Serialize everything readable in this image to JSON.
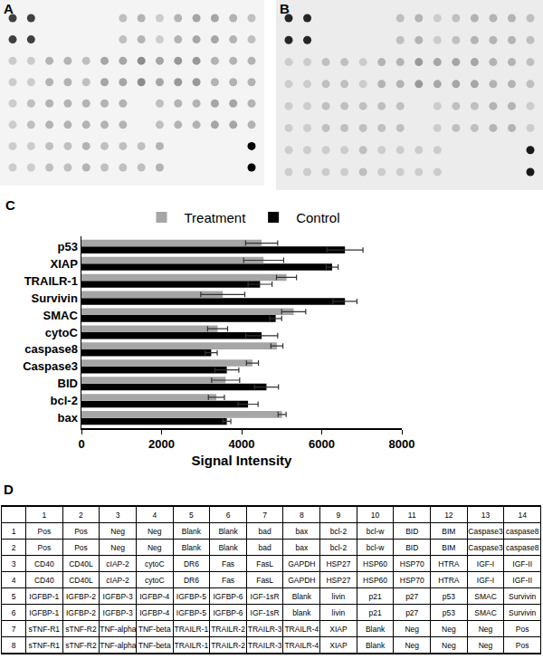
{
  "blots": [
    {
      "label": "A",
      "spots": [
        [
          0.75,
          0.75,
          0,
          0,
          0,
          0,
          0.25,
          0.3,
          0.2,
          0.3,
          0.35,
          0.35,
          0.3,
          0.25
        ],
        [
          0.75,
          0.75,
          0,
          0,
          0,
          0,
          0.25,
          0.3,
          0.2,
          0.3,
          0.35,
          0.35,
          0.3,
          0.25
        ],
        [
          0.2,
          0.2,
          0.3,
          0.3,
          0.25,
          0.35,
          0.35,
          0.45,
          0.35,
          0.4,
          0.4,
          0.3,
          0.3,
          0.3
        ],
        [
          0.2,
          0.2,
          0.3,
          0.3,
          0.25,
          0.35,
          0.35,
          0.45,
          0.35,
          0.4,
          0.4,
          0.3,
          0.3,
          0.3
        ],
        [
          0.2,
          0.25,
          0.3,
          0.3,
          0.3,
          0.3,
          0.3,
          0,
          0.25,
          0.3,
          0.3,
          0.35,
          0.35,
          0.3
        ],
        [
          0.2,
          0.25,
          0.3,
          0.3,
          0.3,
          0.3,
          0.3,
          0,
          0.25,
          0.3,
          0.3,
          0.35,
          0.35,
          0.3
        ],
        [
          0.2,
          0.2,
          0.25,
          0.25,
          0.3,
          0.25,
          0.25,
          0.25,
          0.3,
          0,
          0,
          0,
          0,
          1
        ],
        [
          0.2,
          0.2,
          0.25,
          0.25,
          0.3,
          0.25,
          0.25,
          0.25,
          0.3,
          0,
          0,
          0,
          0,
          1
        ]
      ]
    },
    {
      "label": "B",
      "spots": [
        [
          0.85,
          0.85,
          0,
          0,
          0,
          0,
          0.25,
          0.3,
          0.2,
          0.25,
          0.3,
          0.3,
          0.3,
          0.25
        ],
        [
          0.85,
          0.85,
          0,
          0,
          0,
          0,
          0.25,
          0.3,
          0.2,
          0.25,
          0.3,
          0.3,
          0.3,
          0.25
        ],
        [
          0.2,
          0.2,
          0.25,
          0.25,
          0.2,
          0.3,
          0.3,
          0.4,
          0.35,
          0.35,
          0.35,
          0.3,
          0.3,
          0.25
        ],
        [
          0.2,
          0.2,
          0.25,
          0.25,
          0.2,
          0.3,
          0.3,
          0.4,
          0.35,
          0.35,
          0.35,
          0.3,
          0.3,
          0.25
        ],
        [
          0.2,
          0.2,
          0.25,
          0.25,
          0.25,
          0.25,
          0.25,
          0,
          0.2,
          0.25,
          0.25,
          0.3,
          0.3,
          0.2
        ],
        [
          0.2,
          0.2,
          0.25,
          0.25,
          0.25,
          0.25,
          0.25,
          0,
          0.2,
          0.25,
          0.25,
          0.3,
          0.3,
          0.2
        ],
        [
          0.2,
          0.2,
          0.2,
          0.2,
          0.25,
          0.2,
          0.2,
          0.2,
          0.2,
          0,
          0,
          0,
          0,
          0.9
        ],
        [
          0.2,
          0.2,
          0.2,
          0.2,
          0.25,
          0.2,
          0.2,
          0.2,
          0.2,
          0,
          0,
          0,
          0,
          0.9
        ]
      ]
    }
  ],
  "chart_label": "C",
  "chart_data": {
    "type": "bar",
    "orientation": "horizontal",
    "categories": [
      "p53",
      "XIAP",
      "TRAILR-1",
      "Survivin",
      "SMAC",
      "cytoC",
      "caspase8",
      "Caspase3",
      "BID",
      "bcl-2",
      "bax"
    ],
    "series": [
      {
        "name": "Treatment",
        "color": "#a6a6a6",
        "values": [
          4500,
          4550,
          5120,
          3530,
          5300,
          3400,
          4880,
          4270,
          3600,
          3370,
          5010
        ],
        "errors": [
          400,
          500,
          250,
          550,
          300,
          250,
          150,
          150,
          350,
          200,
          100
        ]
      },
      {
        "name": "Control",
        "color": "#000000",
        "values": [
          6580,
          6260,
          4460,
          6580,
          4850,
          4500,
          3240,
          3630,
          4620,
          4160,
          3630
        ],
        "errors": [
          450,
          150,
          300,
          300,
          150,
          400,
          150,
          300,
          300,
          250,
          100
        ]
      }
    ],
    "x_label": "Signal Intensity",
    "xlim": [
      0,
      8000
    ],
    "xticks": [
      0,
      2000,
      4000,
      6000,
      8000
    ],
    "grid": false,
    "legend": "top"
  },
  "table": {
    "label": "D",
    "header": [
      "1",
      "2",
      "3",
      "4",
      "5",
      "6",
      "7",
      "8",
      "9",
      "10",
      "11",
      "12",
      "13",
      "14"
    ],
    "rows": [
      {
        "label": "1",
        "cells": [
          "Pos",
          "Pos",
          "Neg",
          "Neg",
          "Blank",
          "Blank",
          "bad",
          "bax",
          "bcl-2",
          "bcl-w",
          "BID",
          "BIM",
          "Caspase3",
          "caspase8"
        ]
      },
      {
        "label": "2",
        "cells": [
          "Pos",
          "Pos",
          "Neg",
          "Neg",
          "Blank",
          "Blank",
          "bad",
          "bax",
          "bcl-2",
          "bcl-w",
          "BID",
          "BIM",
          "Caspase3",
          "caspase8"
        ]
      },
      {
        "label": "3",
        "cells": [
          "CD40",
          "CD40L",
          "cIAP-2",
          "cytoC",
          "DR6",
          "Fas",
          "FasL",
          "GAPDH",
          "HSP27",
          "HSP60",
          "HSP70",
          "HTRA",
          "IGF-I",
          "IGF-II"
        ]
      },
      {
        "label": "4",
        "cells": [
          "CD40",
          "CD40L",
          "cIAP-2",
          "cytoC",
          "DR6",
          "Fas",
          "FasL",
          "GAPDH",
          "HSP27",
          "HSP60",
          "HSP70",
          "HTRA",
          "IGF-I",
          "IGF-II"
        ]
      },
      {
        "label": "5",
        "cells": [
          "IGFBP-1",
          "IGFBP-2",
          "IGFBP-3",
          "IGFBP-4",
          "IGFBP-5",
          "IGFBP-6",
          "IGF-1sR",
          "Blank",
          "livin",
          "p21",
          "p27",
          "p53",
          "SMAC",
          "Survivin"
        ]
      },
      {
        "label": "6",
        "cells": [
          "IGFBP-1",
          "IGFBP-2",
          "IGFBP-3",
          "IGFBP-4",
          "IGFBP-5",
          "IGFBP-6",
          "IGF-1sR",
          "blank",
          "livin",
          "p21",
          "p27",
          "p53",
          "SMAC",
          "Survivin"
        ]
      },
      {
        "label": "7",
        "cells": [
          "sTNF-R1",
          "sTNF-R2",
          "TNF-alpha",
          "TNF-beta",
          "TRAILR-1",
          "TRAILR-2",
          "TRAILR-3",
          "TRAILR-4",
          "XIAP",
          "Blank",
          "Neg",
          "Neg",
          "Neg",
          "Pos"
        ]
      },
      {
        "label": "8",
        "cells": [
          "sTNF-R1",
          "sTNF-R2",
          "TNF-alpha",
          "TNF-beta",
          "TRAILR-1",
          "TRAILR-2",
          "TRAILR-3",
          "TRAILR-4",
          "XIAP",
          "Blank",
          "Neg",
          "Neg",
          "Neg",
          "Pos"
        ]
      }
    ]
  }
}
